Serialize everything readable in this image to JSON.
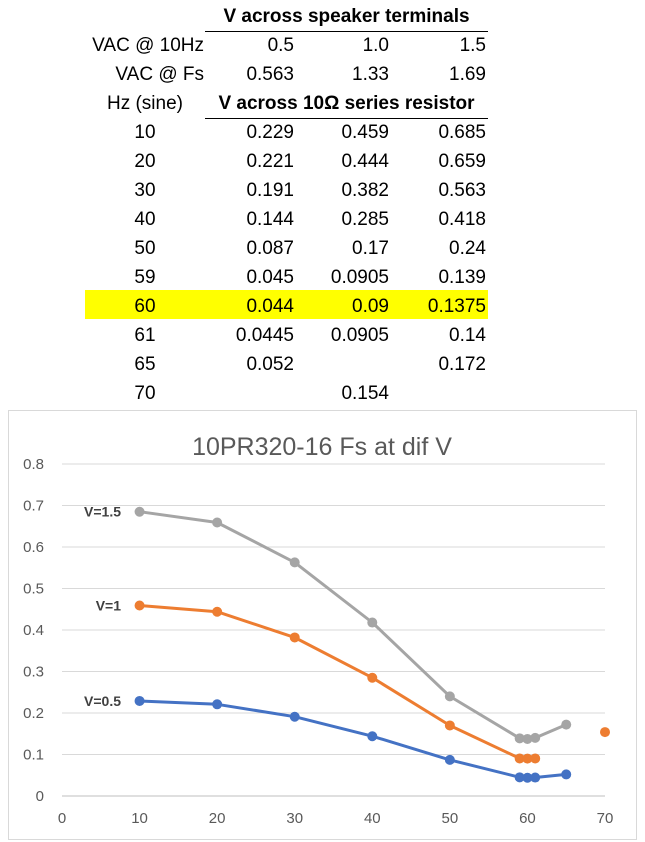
{
  "table": {
    "header1": "V across speaker terminals",
    "row_vac10": {
      "label": "VAC @ 10Hz",
      "values": [
        "0.5",
        "1.0",
        "1.5"
      ]
    },
    "row_vacfs": {
      "label": "VAC @ Fs",
      "values": [
        "0.563",
        "1.33",
        "1.69"
      ]
    },
    "hz_header": "Hz (sine)",
    "header2": "V across 10Ω series resistor",
    "rows": [
      {
        "hz": "10",
        "values": [
          "0.229",
          "0.459",
          "0.685"
        ]
      },
      {
        "hz": "20",
        "values": [
          "0.221",
          "0.444",
          "0.659"
        ]
      },
      {
        "hz": "30",
        "values": [
          "0.191",
          "0.382",
          "0.563"
        ]
      },
      {
        "hz": "40",
        "values": [
          "0.144",
          "0.285",
          "0.418"
        ]
      },
      {
        "hz": "50",
        "values": [
          "0.087",
          "0.17",
          "0.24"
        ]
      },
      {
        "hz": "59",
        "values": [
          "0.045",
          "0.0905",
          "0.139"
        ]
      },
      {
        "hz": "60",
        "values": [
          "0.044",
          "0.09",
          "0.1375"
        ],
        "highlight": true
      },
      {
        "hz": "61",
        "values": [
          "0.0445",
          "0.0905",
          "0.14"
        ]
      },
      {
        "hz": "65",
        "values": [
          "0.052",
          "",
          "0.172"
        ]
      },
      {
        "hz": "70",
        "values": [
          "",
          "0.154",
          ""
        ]
      }
    ],
    "highlight_color": "#ffff00"
  },
  "chart_data": {
    "type": "line",
    "title": "10PR320-16 Fs at dif V",
    "xlabel": "",
    "ylabel": "",
    "xlim": [
      0,
      70
    ],
    "ylim": [
      0,
      0.8
    ],
    "x_ticks": [
      "0",
      "10",
      "20",
      "30",
      "40",
      "50",
      "60",
      "70"
    ],
    "y_ticks": [
      "0",
      "0.1",
      "0.2",
      "0.3",
      "0.4",
      "0.5",
      "0.6",
      "0.7",
      "0.8"
    ],
    "grid": "horizontal",
    "series": [
      {
        "name": "V=0.5",
        "color": "#4472c4",
        "points": [
          [
            10,
            0.229
          ],
          [
            20,
            0.221
          ],
          [
            30,
            0.191
          ],
          [
            40,
            0.144
          ],
          [
            50,
            0.087
          ],
          [
            59,
            0.045
          ],
          [
            60,
            0.044
          ],
          [
            61,
            0.0445
          ],
          [
            65,
            0.052
          ]
        ]
      },
      {
        "name": "V=1",
        "color": "#ed7d31",
        "points": [
          [
            10,
            0.459
          ],
          [
            20,
            0.444
          ],
          [
            30,
            0.382
          ],
          [
            40,
            0.285
          ],
          [
            50,
            0.17
          ],
          [
            59,
            0.0905
          ],
          [
            60,
            0.09
          ],
          [
            61,
            0.0905
          ]
        ],
        "extra_points": [
          [
            70,
            0.154
          ]
        ]
      },
      {
        "name": "V=1.5",
        "color": "#a5a5a5",
        "points": [
          [
            10,
            0.685
          ],
          [
            20,
            0.659
          ],
          [
            30,
            0.563
          ],
          [
            40,
            0.418
          ],
          [
            50,
            0.24
          ],
          [
            59,
            0.139
          ],
          [
            60,
            0.1375
          ],
          [
            61,
            0.14
          ],
          [
            65,
            0.172
          ]
        ]
      }
    ]
  }
}
